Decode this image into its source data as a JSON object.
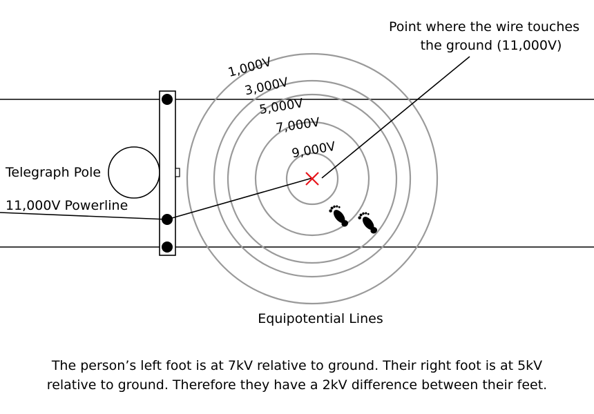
{
  "labels": {
    "touch_point": [
      "Point where the wire touches",
      "the ground (11,000V)"
    ],
    "pole": "Telegraph Pole",
    "powerline": "11,000V Powerline",
    "equipotential": "Equipotential Lines"
  },
  "rings": [
    {
      "label": "9,000V"
    },
    {
      "label": "7,000V"
    },
    {
      "label": "5,000V"
    },
    {
      "label": "3,000V"
    },
    {
      "label": "1,000V"
    }
  ],
  "caption": [
    "The person’s left foot is at 7kV relative to ground. Their right foot is at 5kV",
    "relative to ground. Therefore they have a 2kV difference between their feet."
  ],
  "colors": {
    "ground_marker": "#e8141b",
    "rings": "#9a9a9a"
  },
  "icons": {
    "ground_marker": "x-mark-icon",
    "feet": "footprint-icon"
  }
}
